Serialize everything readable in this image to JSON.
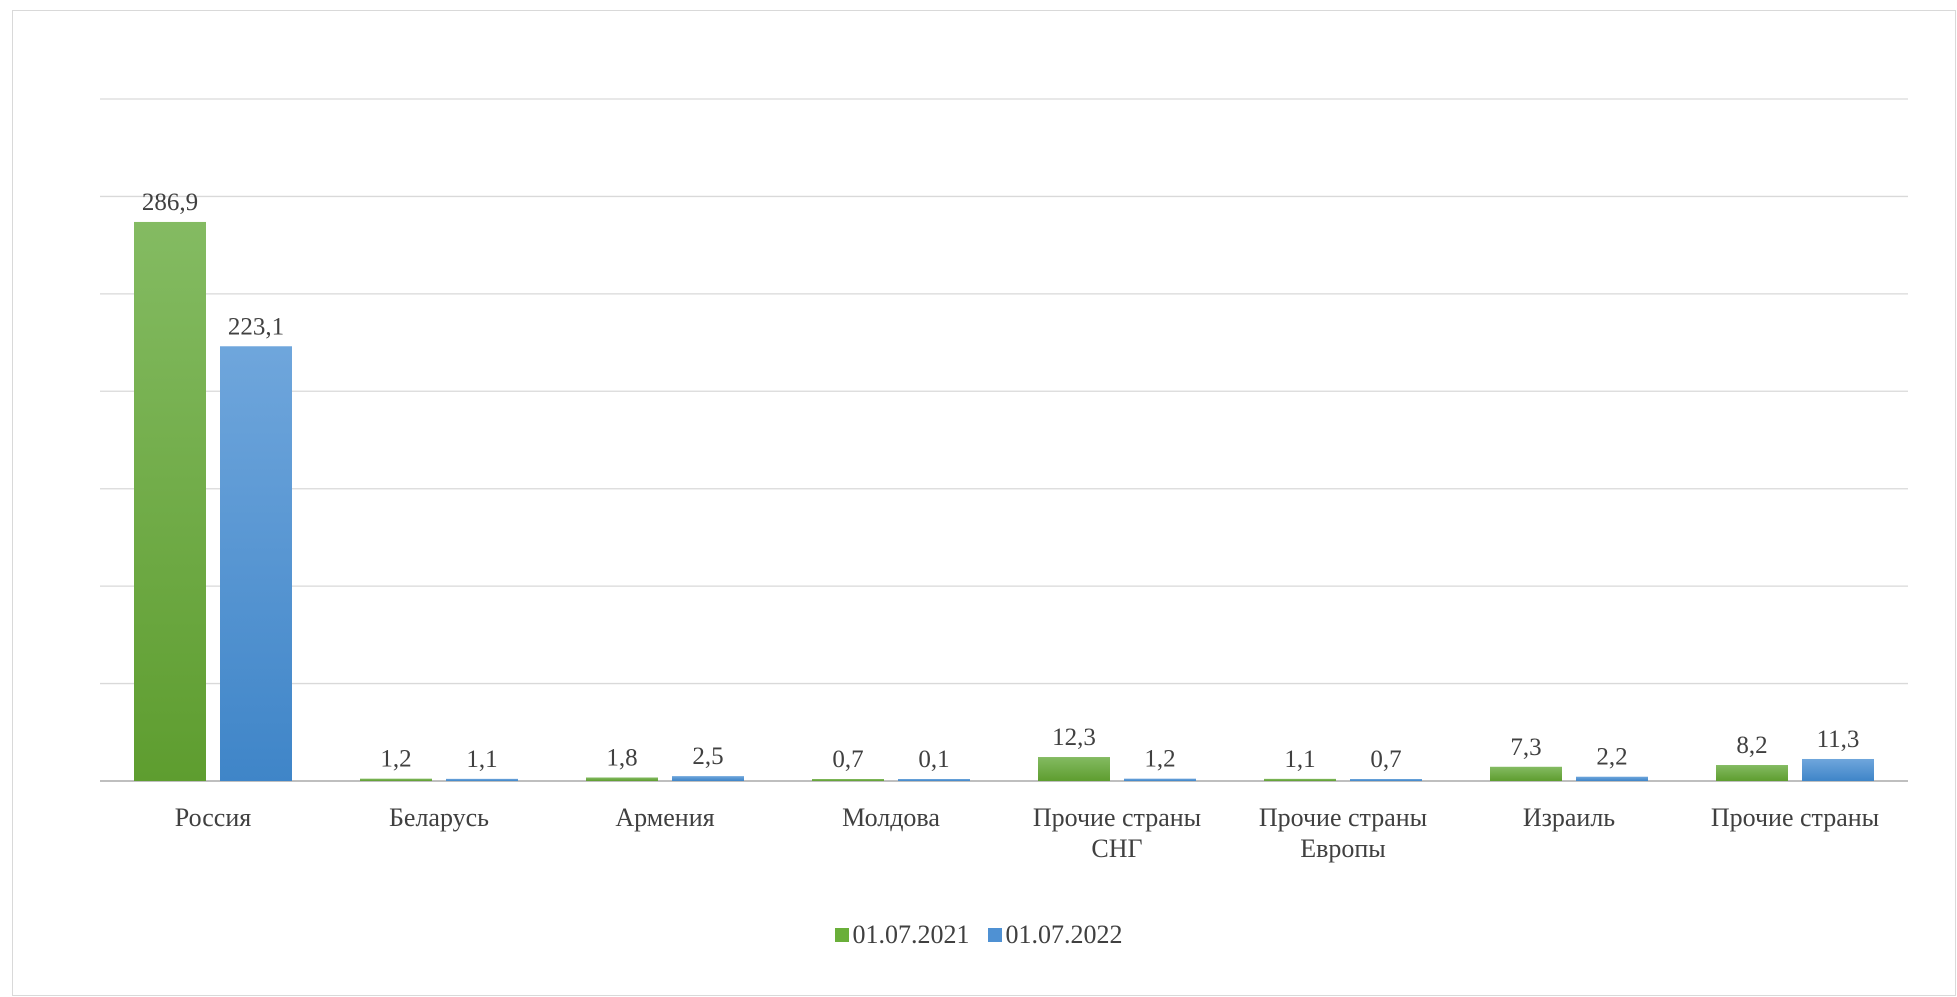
{
  "chart_data": {
    "type": "bar",
    "categories": [
      "Россия",
      "Беларусь",
      "Армения",
      "Молдова",
      "Прочие страны СНГ",
      "Прочие страны Европы",
      "Израиль",
      "Прочие страны"
    ],
    "series": [
      {
        "name": "01.07.2021",
        "values": [
          286.9,
          1.2,
          1.8,
          0.7,
          12.3,
          1.1,
          7.3,
          8.2
        ],
        "labels": [
          "286,9",
          "1,2",
          "1,8",
          "0,7",
          "12,3",
          "1,1",
          "7,3",
          "8,2"
        ],
        "color": "#6aaf3a"
      },
      {
        "name": "01.07.2022",
        "values": [
          223.1,
          1.1,
          2.5,
          0.1,
          1.2,
          0.7,
          2.2,
          11.3
        ],
        "labels": [
          "223,1",
          "1,1",
          "2,5",
          "0,1",
          "1,2",
          "0,7",
          "2,2",
          "11,3"
        ],
        "color": "#4f91d3"
      }
    ],
    "ylim": [
      0,
      350
    ],
    "gridlines": true,
    "legend_position": "bottom"
  }
}
